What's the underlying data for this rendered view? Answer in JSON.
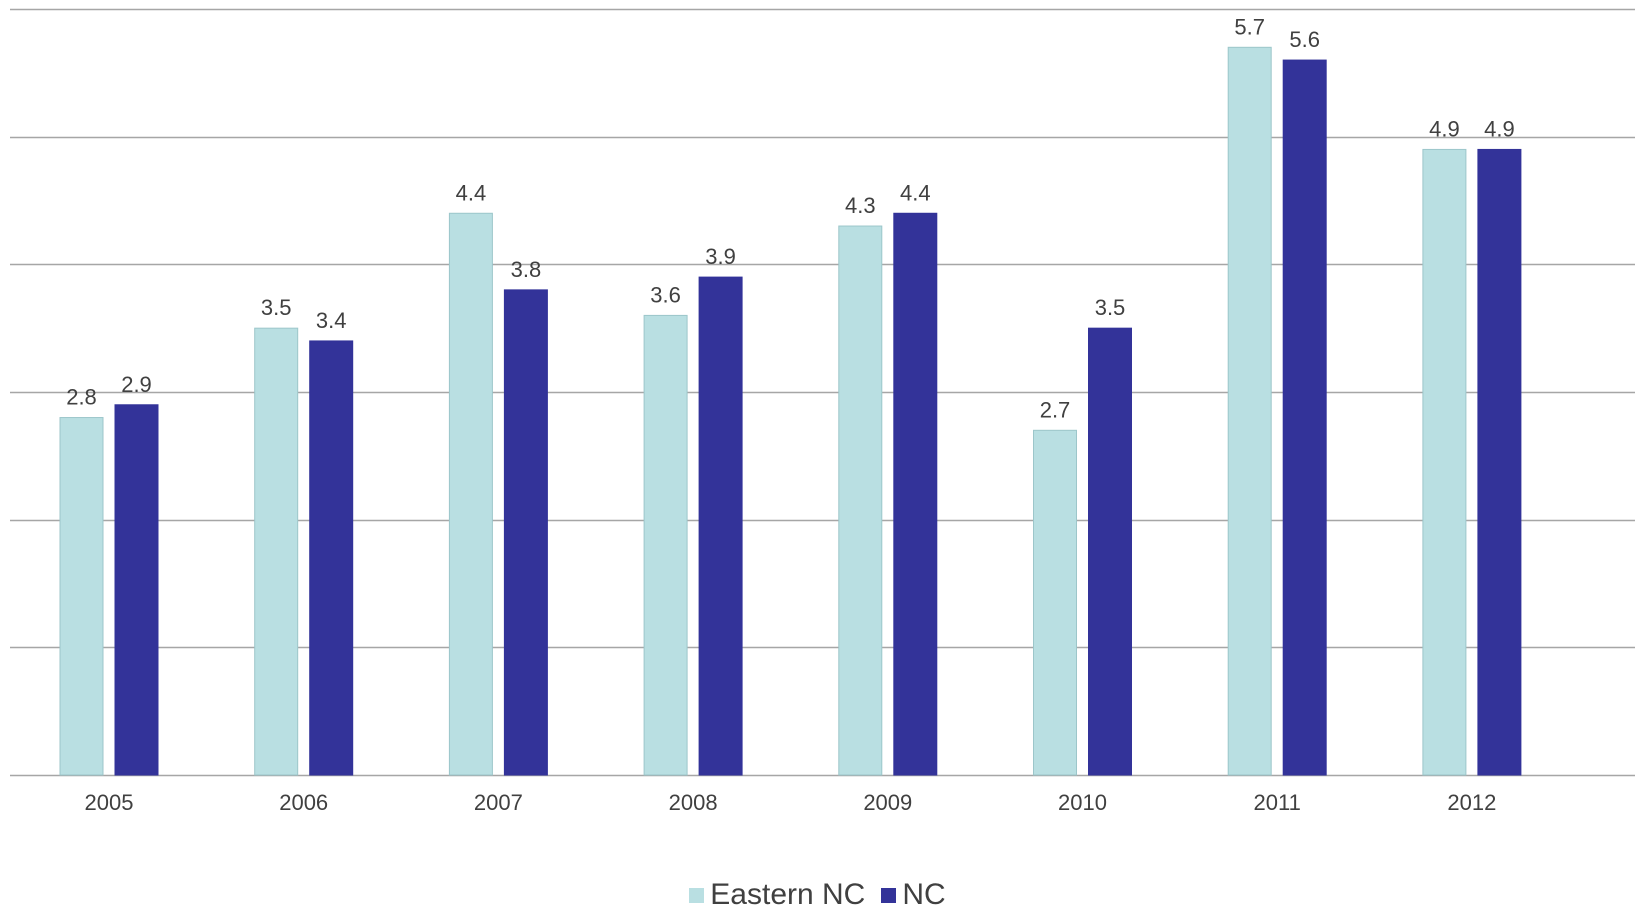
{
  "chart_data": {
    "type": "bar",
    "categories": [
      "2005",
      "2006",
      "2007",
      "2008",
      "2009",
      "2010",
      "2011",
      "2012"
    ],
    "series": [
      {
        "name": "Eastern NC",
        "values": [
          2.8,
          3.5,
          4.4,
          3.6,
          4.3,
          2.7,
          5.7,
          4.9
        ],
        "color": "#b9dfe2"
      },
      {
        "name": "NC",
        "values": [
          2.9,
          3.4,
          3.8,
          3.9,
          4.4,
          3.5,
          5.6,
          4.9
        ],
        "color": "#333399"
      }
    ],
    "data_labels": [
      [
        "2.8",
        "3.5",
        "4.4",
        "3.6",
        "4.3",
        "2.7",
        "5.7",
        "4.9"
      ],
      [
        "2.9",
        "3.4",
        "3.8",
        "3.9",
        "4.4",
        "3.5",
        "5.6",
        "4.9"
      ]
    ],
    "title": "",
    "xlabel": "",
    "ylabel": "",
    "ylim": [
      0,
      6
    ],
    "grid": true,
    "legend_position": "bottom-center"
  },
  "legend": {
    "items": [
      {
        "label": "Eastern NC",
        "color": "#b9dfe2"
      },
      {
        "label": "NC",
        "color": "#333399"
      }
    ]
  }
}
